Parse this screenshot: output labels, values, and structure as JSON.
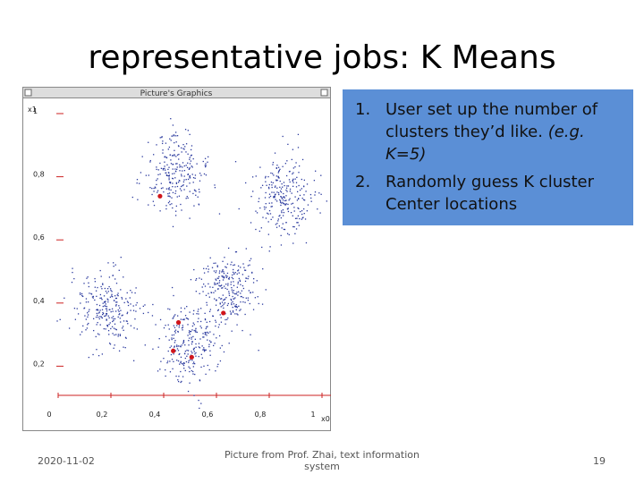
{
  "title": "representative jobs: K Means",
  "window": {
    "title": "Picture's Graphics",
    "y_axis_label": "x1",
    "x_axis_label": "x0",
    "xticks": [
      0,
      {
        "value": 0.2,
        "label": "0,2"
      },
      {
        "value": 0.4,
        "label": "0,4"
      },
      {
        "value": 0.6,
        "label": "0,6"
      },
      {
        "value": 0.8,
        "label": "0,8"
      },
      1
    ],
    "yticks": [
      1,
      {
        "value": 0.8,
        "label": "0,8"
      },
      {
        "value": 0.6,
        "label": "0,6"
      },
      {
        "value": 0.4,
        "label": "0,4"
      },
      {
        "value": 0.2,
        "label": "0,2"
      }
    ],
    "clusters": [
      {
        "x": 0.47,
        "y": 0.8
      },
      {
        "x": 0.89,
        "y": 0.73
      },
      {
        "x": 0.22,
        "y": 0.37
      },
      {
        "x": 0.67,
        "y": 0.44
      },
      {
        "x": 0.53,
        "y": 0.27
      }
    ],
    "centroids": [
      {
        "x": 0.42,
        "y": 0.73
      },
      {
        "x": 0.66,
        "y": 0.36
      },
      {
        "x": 0.49,
        "y": 0.33
      },
      {
        "x": 0.47,
        "y": 0.24
      },
      {
        "x": 0.54,
        "y": 0.22
      }
    ]
  },
  "callout": {
    "items": [
      {
        "number": "1.",
        "text": "User set up the number of clusters they’d like.",
        "note": "(e.g. K=5)"
      },
      {
        "number": "2.",
        "text": "Randomly guess K cluster Center locations"
      }
    ]
  },
  "footer": {
    "date": "2020-11-02",
    "source": "Picture from Prof. Zhai, text information system",
    "page": "19"
  }
}
